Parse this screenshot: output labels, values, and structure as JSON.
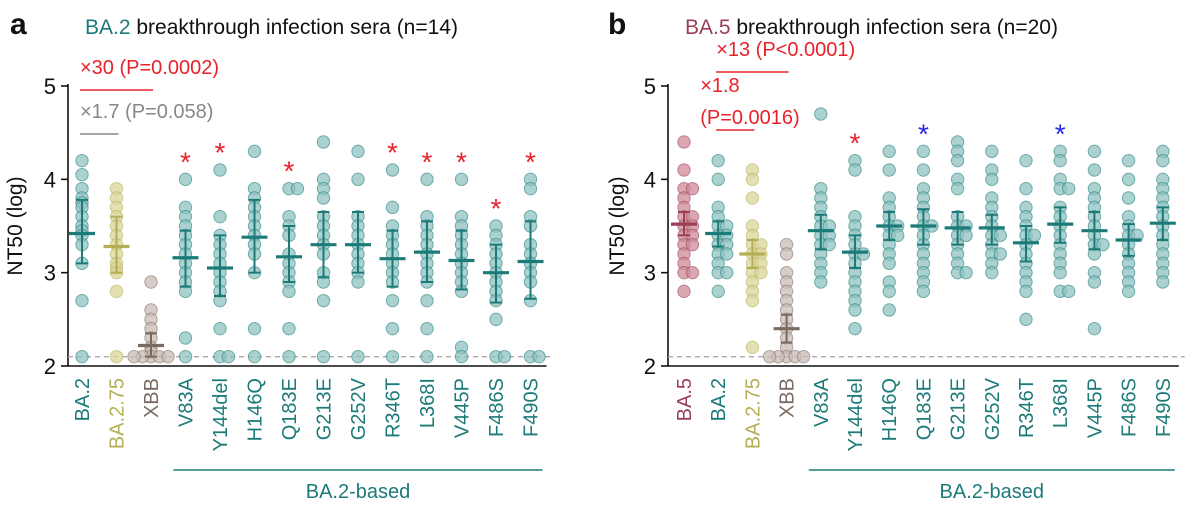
{
  "colors": {
    "teal": "#1c7b79",
    "teal_fill": "#8fc1c0",
    "olive": "#b4ae55",
    "olive_fill": "#d9d59a",
    "brown": "#7a6a62",
    "brown_fill": "#c9bcb6",
    "maroon": "#9a3f55",
    "maroon_fill": "#cf8a99",
    "red": "#e8212a",
    "gray": "#888888",
    "blue": "#2727e0"
  },
  "chart_data": [
    {
      "panel_label": "a",
      "type": "scatter",
      "title_variant": "BA.2",
      "title_rest": " breakthrough infection sera (n=14)",
      "ylabel": "NT50 (log)",
      "ylim": [
        2,
        5
      ],
      "yticks": [
        "2",
        "3",
        "4",
        "5"
      ],
      "detection_limit": 2.1,
      "group_label": "BA.2-based",
      "comparisons": [
        {
          "text": "×30 (P=0.0002)",
          "style": "red",
          "from": "BA.2",
          "to": "XBB"
        },
        {
          "text": "×1.7 (P=0.058)",
          "style": "gray",
          "from": "BA.2",
          "to": "BA.2.75"
        }
      ],
      "categories": [
        {
          "name": "BA.2",
          "color": "teal",
          "median": 3.42,
          "ci": [
            3.1,
            3.78
          ],
          "star": "",
          "points": [
            4.2,
            4.05,
            3.9,
            3.8,
            3.75,
            3.7,
            3.6,
            3.5,
            3.45,
            3.4,
            3.3,
            3.1,
            2.7,
            2.1
          ]
        },
        {
          "name": "BA.2.75",
          "color": "olive",
          "median": 3.28,
          "ci": [
            3.0,
            3.6
          ],
          "star": "",
          "points": [
            3.9,
            3.8,
            3.7,
            3.6,
            3.5,
            3.4,
            3.3,
            3.2,
            3.1,
            3.05,
            3.0,
            2.8,
            2.1
          ]
        },
        {
          "name": "XBB",
          "color": "brown",
          "median": 2.22,
          "ci": [
            2.1,
            2.35
          ],
          "star": "",
          "points": [
            2.9,
            2.6,
            2.5,
            2.4,
            2.3,
            2.2,
            2.15,
            2.1,
            2.1,
            2.1,
            2.1,
            2.1
          ]
        },
        {
          "name": "V83A",
          "color": "teal",
          "median": 3.16,
          "ci": [
            2.85,
            3.45
          ],
          "star": "red",
          "points": [
            4.0,
            3.7,
            3.6,
            3.5,
            3.4,
            3.3,
            3.2,
            3.1,
            3.0,
            2.9,
            2.8,
            2.3,
            2.1
          ]
        },
        {
          "name": "Y144del",
          "color": "teal",
          "median": 3.05,
          "ci": [
            2.75,
            3.4
          ],
          "star": "red",
          "points": [
            4.1,
            3.6,
            3.4,
            3.3,
            3.2,
            3.1,
            3.0,
            2.9,
            2.8,
            2.7,
            2.4,
            2.1,
            2.1
          ]
        },
        {
          "name": "H146Q",
          "color": "teal",
          "median": 3.38,
          "ci": [
            3.0,
            3.78
          ],
          "star": "",
          "points": [
            4.3,
            3.9,
            3.8,
            3.7,
            3.6,
            3.5,
            3.4,
            3.3,
            3.2,
            3.0,
            2.4,
            2.1
          ]
        },
        {
          "name": "Q183E",
          "color": "teal",
          "median": 3.17,
          "ci": [
            2.9,
            3.5
          ],
          "star": "red",
          "points": [
            3.9,
            3.9,
            3.6,
            3.5,
            3.4,
            3.2,
            3.1,
            3.0,
            2.9,
            2.8,
            2.4,
            2.1
          ]
        },
        {
          "name": "G213E",
          "color": "teal",
          "median": 3.3,
          "ci": [
            2.95,
            3.65
          ],
          "star": "",
          "points": [
            4.4,
            4.0,
            3.9,
            3.8,
            3.6,
            3.5,
            3.4,
            3.3,
            3.2,
            3.0,
            2.9,
            2.7,
            2.1
          ]
        },
        {
          "name": "G252V",
          "color": "teal",
          "median": 3.3,
          "ci": [
            3.0,
            3.65
          ],
          "star": "",
          "points": [
            4.3,
            4.0,
            3.6,
            3.5,
            3.4,
            3.3,
            3.2,
            3.1,
            3.0,
            2.9,
            2.1
          ]
        },
        {
          "name": "R346T",
          "color": "teal",
          "median": 3.15,
          "ci": [
            2.85,
            3.45
          ],
          "star": "red",
          "points": [
            4.1,
            3.7,
            3.5,
            3.4,
            3.3,
            3.2,
            3.1,
            3.0,
            2.9,
            2.7,
            2.4,
            2.1
          ]
        },
        {
          "name": "L368I",
          "color": "teal",
          "median": 3.22,
          "ci": [
            2.9,
            3.55
          ],
          "star": "red",
          "points": [
            4.0,
            3.6,
            3.5,
            3.4,
            3.3,
            3.2,
            3.1,
            3.0,
            2.9,
            2.7,
            2.4,
            2.1
          ]
        },
        {
          "name": "V445P",
          "color": "teal",
          "median": 3.13,
          "ci": [
            2.82,
            3.45
          ],
          "star": "red",
          "points": [
            4.0,
            3.6,
            3.5,
            3.4,
            3.3,
            3.2,
            3.1,
            3.0,
            2.9,
            2.8,
            2.2,
            2.1
          ]
        },
        {
          "name": "F486S",
          "color": "teal",
          "median": 3.0,
          "ci": [
            2.68,
            3.3
          ],
          "star": "red",
          "points": [
            3.5,
            3.4,
            3.3,
            3.2,
            3.1,
            3.0,
            2.9,
            2.8,
            2.7,
            2.5,
            2.1,
            2.1
          ]
        },
        {
          "name": "F490S",
          "color": "teal",
          "median": 3.12,
          "ci": [
            2.72,
            3.55
          ],
          "star": "red",
          "points": [
            4.0,
            3.9,
            3.6,
            3.5,
            3.3,
            3.2,
            3.1,
            3.0,
            2.9,
            2.7,
            2.1,
            2.1
          ]
        }
      ]
    },
    {
      "panel_label": "b",
      "type": "scatter",
      "title_variant": "BA.5",
      "title_rest": " breakthrough infection sera (n=20)",
      "ylabel": "NT50 (log)",
      "ylim": [
        2,
        5
      ],
      "yticks": [
        "2",
        "3",
        "4",
        "5"
      ],
      "detection_limit": 2.1,
      "group_label": "BA.2-based",
      "comparisons": [
        {
          "text": "×13 (P<0.0001)",
          "style": "red",
          "from": "BA.2",
          "to": "XBB"
        },
        {
          "text": "×1.8",
          "text2": "(P=0.0016)",
          "style": "red",
          "from": "BA.2",
          "to": "BA.2.75"
        }
      ],
      "categories": [
        {
          "name": "BA.5",
          "color": "maroon",
          "median": 3.52,
          "ci": [
            3.4,
            3.65
          ],
          "star": "",
          "points": [
            4.4,
            4.1,
            3.9,
            3.9,
            3.8,
            3.7,
            3.6,
            3.6,
            3.5,
            3.5,
            3.4,
            3.4,
            3.3,
            3.3,
            3.2,
            3.1,
            3.0,
            3.0,
            2.8
          ]
        },
        {
          "name": "BA.2",
          "color": "teal",
          "median": 3.42,
          "ci": [
            3.28,
            3.55
          ],
          "star": "",
          "points": [
            4.2,
            4.0,
            3.7,
            3.6,
            3.5,
            3.5,
            3.4,
            3.4,
            3.3,
            3.3,
            3.2,
            3.2,
            3.1,
            3.0,
            3.0,
            2.8
          ]
        },
        {
          "name": "BA.2.75",
          "color": "olive",
          "median": 3.2,
          "ci": [
            3.05,
            3.35
          ],
          "star": "",
          "points": [
            4.1,
            4.0,
            3.8,
            3.5,
            3.4,
            3.3,
            3.3,
            3.2,
            3.2,
            3.1,
            3.1,
            3.0,
            3.0,
            2.9,
            2.8,
            2.7,
            2.2
          ]
        },
        {
          "name": "XBB",
          "color": "brown",
          "median": 2.4,
          "ci": [
            2.25,
            2.55
          ],
          "star": "",
          "points": [
            3.3,
            3.2,
            3.0,
            2.9,
            2.8,
            2.7,
            2.6,
            2.5,
            2.4,
            2.3,
            2.2,
            2.1,
            2.1,
            2.1,
            2.1,
            2.1
          ]
        },
        {
          "name": "V83A",
          "color": "teal",
          "median": 3.45,
          "ci": [
            3.25,
            3.62
          ],
          "star": "",
          "points": [
            4.7,
            3.9,
            3.8,
            3.7,
            3.6,
            3.5,
            3.5,
            3.4,
            3.4,
            3.3,
            3.3,
            3.2,
            3.1,
            3.0,
            2.9
          ]
        },
        {
          "name": "Y144del",
          "color": "teal",
          "median": 3.22,
          "ci": [
            3.05,
            3.4
          ],
          "star": "red",
          "points": [
            4.2,
            4.1,
            3.6,
            3.5,
            3.4,
            3.3,
            3.2,
            3.2,
            3.1,
            3.0,
            2.9,
            2.8,
            2.7,
            2.6,
            2.4
          ]
        },
        {
          "name": "H146Q",
          "color": "teal",
          "median": 3.5,
          "ci": [
            3.35,
            3.65
          ],
          "star": "",
          "points": [
            4.3,
            4.1,
            3.8,
            3.7,
            3.6,
            3.5,
            3.5,
            3.4,
            3.4,
            3.3,
            3.2,
            3.1,
            2.9,
            2.8,
            2.6
          ]
        },
        {
          "name": "Q183E",
          "color": "teal",
          "median": 3.5,
          "ci": [
            3.3,
            3.68
          ],
          "star": "blue",
          "points": [
            4.3,
            4.1,
            3.9,
            3.8,
            3.7,
            3.6,
            3.5,
            3.5,
            3.4,
            3.3,
            3.2,
            3.1,
            3.0,
            2.9,
            2.8
          ]
        },
        {
          "name": "G213E",
          "color": "teal",
          "median": 3.48,
          "ci": [
            3.3,
            3.65
          ],
          "star": "",
          "points": [
            4.4,
            4.3,
            4.2,
            4.0,
            3.9,
            3.6,
            3.5,
            3.5,
            3.4,
            3.4,
            3.3,
            3.2,
            3.1,
            3.0,
            3.0
          ]
        },
        {
          "name": "G252V",
          "color": "teal",
          "median": 3.48,
          "ci": [
            3.3,
            3.62
          ],
          "star": "",
          "points": [
            4.3,
            4.1,
            4.0,
            3.8,
            3.7,
            3.6,
            3.5,
            3.4,
            3.4,
            3.3,
            3.2,
            3.2,
            3.1,
            3.0
          ]
        },
        {
          "name": "R346T",
          "color": "teal",
          "median": 3.32,
          "ci": [
            3.12,
            3.5
          ],
          "star": "",
          "points": [
            4.2,
            3.9,
            3.7,
            3.6,
            3.5,
            3.4,
            3.4,
            3.3,
            3.2,
            3.1,
            3.0,
            2.9,
            2.8,
            2.5
          ]
        },
        {
          "name": "L368I",
          "color": "teal",
          "median": 3.52,
          "ci": [
            3.32,
            3.7
          ],
          "star": "blue",
          "points": [
            4.3,
            4.2,
            4.0,
            3.9,
            3.9,
            3.7,
            3.6,
            3.5,
            3.4,
            3.3,
            3.2,
            3.1,
            3.0,
            2.8,
            2.8
          ]
        },
        {
          "name": "V445P",
          "color": "teal",
          "median": 3.45,
          "ci": [
            3.25,
            3.65
          ],
          "star": "",
          "points": [
            4.3,
            4.1,
            3.9,
            3.8,
            3.7,
            3.6,
            3.5,
            3.4,
            3.3,
            3.3,
            3.2,
            3.0,
            2.9,
            2.4
          ]
        },
        {
          "name": "F486S",
          "color": "teal",
          "median": 3.35,
          "ci": [
            3.18,
            3.52
          ],
          "star": "",
          "points": [
            4.2,
            4.0,
            3.8,
            3.6,
            3.5,
            3.4,
            3.4,
            3.3,
            3.2,
            3.1,
            3.0,
            2.9,
            2.8
          ]
        },
        {
          "name": "F490S",
          "color": "teal",
          "median": 3.53,
          "ci": [
            3.35,
            3.7
          ],
          "star": "",
          "points": [
            4.3,
            4.2,
            4.0,
            3.9,
            3.8,
            3.7,
            3.6,
            3.5,
            3.4,
            3.3,
            3.2,
            3.1,
            3.0,
            2.9
          ]
        }
      ]
    }
  ]
}
